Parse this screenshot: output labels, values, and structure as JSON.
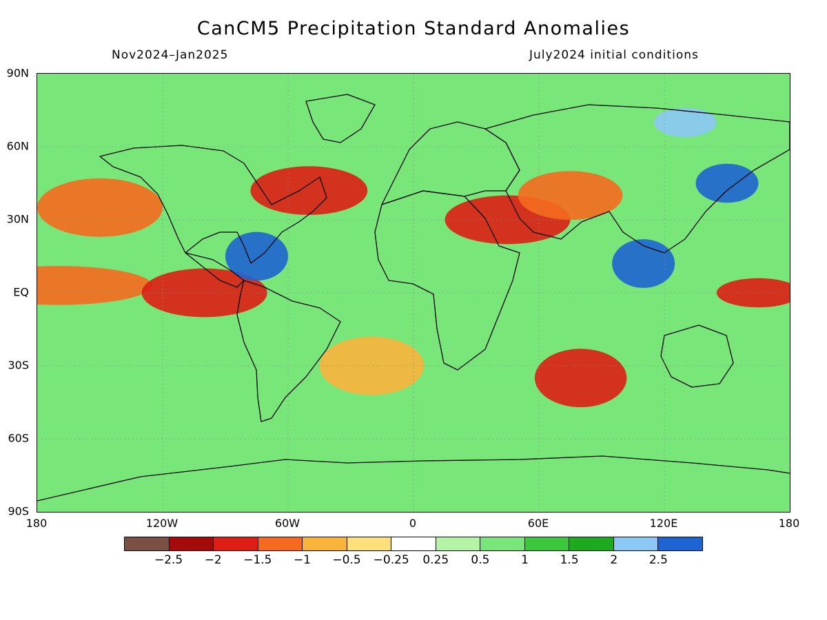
{
  "title": "CanCM5 Precipitation Standard Anomalies",
  "subtitle_left": "Nov2024–Jan2025",
  "subtitle_right": "July2024 initial conditions",
  "lat_labels": [
    "90N",
    "60N",
    "30N",
    "EQ",
    "30S",
    "60S",
    "90S"
  ],
  "lon_labels": [
    "180",
    "120W",
    "60W",
    "0",
    "60E",
    "120E",
    "180"
  ],
  "colorbar": {
    "colors": [
      "#7a5045",
      "#a50a0a",
      "#dc1e14",
      "#f56a1e",
      "#fab43c",
      "#fde07a",
      "#ffffff",
      "#b4f5a5",
      "#78e678",
      "#3cc83c",
      "#1eaa1e",
      "#8cc8f5",
      "#1e64d2"
    ],
    "labels": [
      "−2.5",
      "−2",
      "−1.5",
      "−1",
      "−0.5",
      "−0.25",
      "0.25",
      "0.5",
      "1",
      "1.5",
      "2",
      "2.5"
    ]
  },
  "background_color": "#78e678",
  "anomaly_regions": [
    {
      "name": "equatorial-pacific-dry",
      "lon": -170,
      "lat": 3,
      "rx": 45,
      "ry": 8,
      "color": "#f56a1e"
    },
    {
      "name": "east-pacific-dry",
      "lon": -100,
      "lat": 0,
      "rx": 30,
      "ry": 10,
      "color": "#dc1e14"
    },
    {
      "name": "north-pacific-dry",
      "lon": -150,
      "lat": 35,
      "rx": 30,
      "ry": 12,
      "color": "#f56a1e"
    },
    {
      "name": "caribbean-wet",
      "lon": -75,
      "lat": 15,
      "rx": 15,
      "ry": 10,
      "color": "#1e64d2"
    },
    {
      "name": "north-atlantic-dry",
      "lon": -50,
      "lat": 42,
      "rx": 28,
      "ry": 10,
      "color": "#dc1e14"
    },
    {
      "name": "middle-east-dry",
      "lon": 45,
      "lat": 30,
      "rx": 30,
      "ry": 10,
      "color": "#dc1e14"
    },
    {
      "name": "central-asia-dry",
      "lon": 75,
      "lat": 40,
      "rx": 25,
      "ry": 10,
      "color": "#f56a1e"
    },
    {
      "name": "southeast-asia-wet",
      "lon": 110,
      "lat": 12,
      "rx": 15,
      "ry": 10,
      "color": "#1e64d2"
    },
    {
      "name": "west-pacific-dry",
      "lon": 165,
      "lat": 0,
      "rx": 20,
      "ry": 6,
      "color": "#dc1e14"
    },
    {
      "name": "south-indian-dry",
      "lon": 80,
      "lat": -35,
      "rx": 22,
      "ry": 12,
      "color": "#dc1e14"
    },
    {
      "name": "south-atlantic-dry",
      "lon": -20,
      "lat": -30,
      "rx": 25,
      "ry": 12,
      "color": "#fab43c"
    },
    {
      "name": "northeast-asia-wet",
      "lon": 150,
      "lat": 45,
      "rx": 15,
      "ry": 8,
      "color": "#1e64d2"
    },
    {
      "name": "arctic-wet",
      "lon": 130,
      "lat": 70,
      "rx": 15,
      "ry": 6,
      "color": "#8cc8f5"
    }
  ]
}
